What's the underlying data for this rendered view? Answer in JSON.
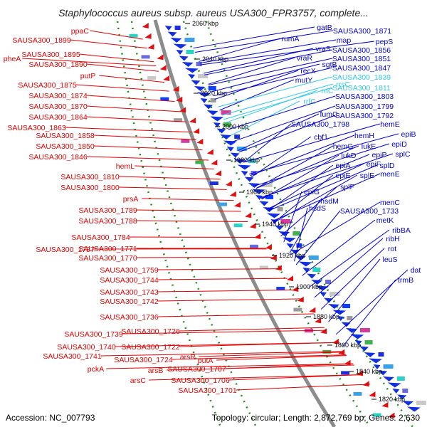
{
  "title": "Staphylococcus aureus subsp. aureus USA300_FPR3757, complete...",
  "footer": {
    "accession": "Accession: NC_007793",
    "summary": "Topology: circular; Length: 2,872,769 bp; Genes: 2,630"
  },
  "colors": {
    "left_labels": "#e00000",
    "right_labels": "#0000cc",
    "rrna_labels": "#33c8e8",
    "backbone": "#8c8c8c",
    "dotted_guides": "#1a8f1a",
    "forward_genes": "#e01010",
    "reverse_genes": "#1030e0"
  },
  "scale_ticks": [
    "2060 kbp",
    "2040 kbp",
    "2020 kbp",
    "2000 kbp",
    "1980 kbp",
    "1960 kbp",
    "1940 kbp",
    "1920 kbp",
    "1900 kbp",
    "1880 kbp",
    "1860 kbp",
    "1840 kbp",
    "1820 kbp"
  ],
  "left_labels": [
    "ppaC",
    "SAUSA300_1899",
    "pheA",
    "SAUSA300_1895",
    "SAUSA300_1890",
    "putP",
    "SAUSA300_1875",
    "SAUSA300_1874",
    "SAUSA300_1870",
    "SAUSA300_1864",
    "SAUSA300_1863",
    "SAUSA300_1858",
    "SAUSA300_1850",
    "SAUSA300_1846",
    "hemL",
    "SAUSA300_1810",
    "SAUSA300_1800",
    "prsA",
    "SAUSA300_1789",
    "SAUSA300_1788",
    "SAUSA300_1784",
    "SAUSA300_1787",
    "SAUSA300_1771",
    "SAUSA300_1770",
    "SAUSA300_1759",
    "SAUSA300_1744",
    "SAUSA300_1743",
    "SAUSA300_1742",
    "SAUSA300_1736",
    "SAUSA300_1739",
    "SAUSA300_1726",
    "SAUSA300_1740",
    "SAUSA300_1722",
    "SAUSA300_1741",
    "SAUSA300_1724",
    "pckA",
    "arsR",
    "putA",
    "arsB",
    "SAUSA300_1707",
    "arsC",
    "SAUSA300_1706",
    "SAUSA300_1701"
  ],
  "right_labels": [
    "gatB",
    "SAUSA300_1871",
    "rumA",
    "map",
    "pepS",
    "vraS",
    "vraR",
    "SAUSA300_1856",
    "sgtB",
    "SAUSA300_1851",
    "recX",
    "SAUSA300_1847",
    "mutY",
    "rrsC",
    "SAUSA300_1839",
    "rrlC",
    "SAUSA300_1811",
    "rrfC",
    "SAUSA300_1803",
    "fumC",
    "SAUSA300_1799",
    "SAUSA300_1798",
    "SAUSA300_1792",
    "hemE",
    "cbf1",
    "hemH",
    "epiB",
    "hemG",
    "lukE",
    "epiD",
    "lukD",
    "epiP",
    "splC",
    "epiA",
    "epiF",
    "splD",
    "epiE",
    "splE",
    "epiG",
    "splF",
    "hsdM",
    "hsdS",
    "menE",
    "menC",
    "SAUSA300_1733",
    "metK",
    "ribBA",
    "ribH",
    "rot",
    "leuS",
    "dat",
    "trmB"
  ]
}
